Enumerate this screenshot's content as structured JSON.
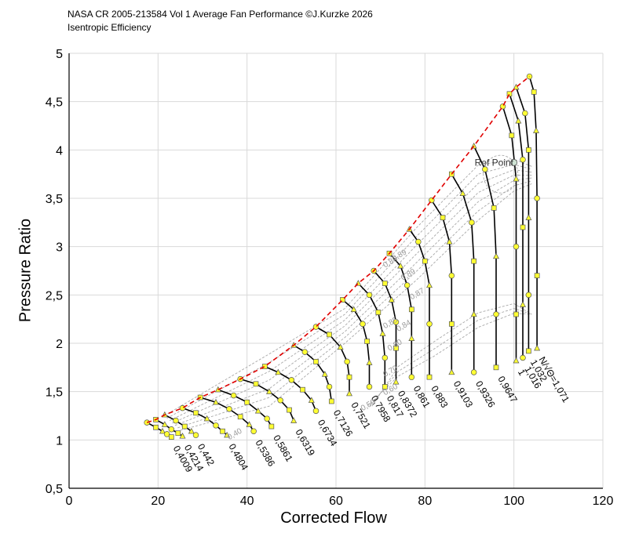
{
  "chart_data": {
    "type": "scatter",
    "title": "NASA CR 2005-213584 Vol 1 Average Fan Performance ©J.Kurzke 2026",
    "subtitle": "Isentropic Efficiency",
    "xlabel": "Corrected Flow",
    "ylabel": "Pressure Ratio",
    "xlim": [
      0,
      120
    ],
    "ylim": [
      0.5,
      5
    ],
    "x_ticks": [
      "0",
      "20",
      "40",
      "60",
      "80",
      "100",
      "120"
    ],
    "y_ticks": [
      "0,5",
      "1",
      "1,5",
      "2",
      "2,5",
      "3",
      "3,5",
      "4",
      "4,5",
      "5"
    ],
    "grid": true,
    "speed_lines": [
      {
        "label": "0,4009",
        "points": [
          [
            17.5,
            1.18
          ],
          [
            19.5,
            1.13
          ],
          [
            21,
            1.09
          ],
          [
            22,
            1.06
          ],
          [
            23,
            1.03
          ]
        ]
      },
      {
        "label": "0,4214",
        "points": [
          [
            19.5,
            1.21
          ],
          [
            21.5,
            1.16
          ],
          [
            23,
            1.11
          ],
          [
            24.5,
            1.07
          ],
          [
            25.5,
            1.04
          ]
        ]
      },
      {
        "label": "0,442",
        "points": [
          [
            21.5,
            1.26
          ],
          [
            24,
            1.2
          ],
          [
            26,
            1.14
          ],
          [
            27.5,
            1.09
          ],
          [
            28.5,
            1.05
          ]
        ]
      },
      {
        "label": "0,4804",
        "points": [
          [
            25.5,
            1.33
          ],
          [
            28.5,
            1.28
          ],
          [
            31,
            1.22
          ],
          [
            33,
            1.15
          ],
          [
            34.5,
            1.09
          ],
          [
            35.5,
            1.05
          ]
        ]
      },
      {
        "label": "0,5386",
        "points": [
          [
            29.5,
            1.44
          ],
          [
            33,
            1.39
          ],
          [
            36,
            1.32
          ],
          [
            38.5,
            1.24
          ],
          [
            40.5,
            1.16
          ],
          [
            41.5,
            1.09
          ]
        ]
      },
      {
        "label": "0,5861",
        "points": [
          [
            33.5,
            1.52
          ],
          [
            37,
            1.46
          ],
          [
            40,
            1.39
          ],
          [
            42.5,
            1.3
          ],
          [
            44.5,
            1.22
          ],
          [
            45.5,
            1.14
          ]
        ]
      },
      {
        "label": "0,6319",
        "points": [
          [
            38.5,
            1.63
          ],
          [
            42,
            1.58
          ],
          [
            45,
            1.5
          ],
          [
            47.5,
            1.41
          ],
          [
            49.5,
            1.31
          ],
          [
            50.5,
            1.2
          ]
        ]
      },
      {
        "label": "0,6734",
        "points": [
          [
            44,
            1.76
          ],
          [
            47,
            1.7
          ],
          [
            50,
            1.62
          ],
          [
            52.5,
            1.52
          ],
          [
            54.5,
            1.41
          ],
          [
            55.5,
            1.3
          ]
        ]
      },
      {
        "label": "0,7126",
        "points": [
          [
            50.5,
            1.98
          ],
          [
            53,
            1.91
          ],
          [
            55.5,
            1.81
          ],
          [
            57.5,
            1.68
          ],
          [
            58.5,
            1.55
          ],
          [
            59,
            1.4
          ]
        ]
      },
      {
        "label": "0,7521",
        "points": [
          [
            55.5,
            2.17
          ],
          [
            58.5,
            2.09
          ],
          [
            61,
            1.96
          ],
          [
            62.5,
            1.81
          ],
          [
            63,
            1.65
          ],
          [
            63,
            1.48
          ]
        ]
      },
      {
        "label": "0,7958",
        "points": [
          [
            61.5,
            2.45
          ],
          [
            64,
            2.35
          ],
          [
            66,
            2.2
          ],
          [
            67,
            2.02
          ],
          [
            67.5,
            1.8
          ],
          [
            67.5,
            1.55
          ]
        ]
      },
      {
        "label": "0,817",
        "points": [
          [
            65,
            2.62
          ],
          [
            67.5,
            2.5
          ],
          [
            69.5,
            2.32
          ],
          [
            70.5,
            2.1
          ],
          [
            71,
            1.85
          ],
          [
            71,
            1.55
          ]
        ]
      },
      {
        "label": "0,8372",
        "points": [
          [
            68.5,
            2.75
          ],
          [
            71,
            2.62
          ],
          [
            72.5,
            2.45
          ],
          [
            73.5,
            2.22
          ],
          [
            73.5,
            1.95
          ],
          [
            73.5,
            1.6
          ]
        ]
      },
      {
        "label": "0,861",
        "points": [
          [
            72,
            2.93
          ],
          [
            74.5,
            2.8
          ],
          [
            76,
            2.6
          ],
          [
            77,
            2.35
          ],
          [
            77,
            2.05
          ],
          [
            77,
            1.65
          ]
        ]
      },
      {
        "label": "0,883",
        "points": [
          [
            76.5,
            3.18
          ],
          [
            78.5,
            3.05
          ],
          [
            80,
            2.85
          ],
          [
            81,
            2.6
          ],
          [
            81,
            2.2
          ],
          [
            81,
            1.65
          ]
        ]
      },
      {
        "label": "0,9103",
        "points": [
          [
            81.5,
            3.48
          ],
          [
            84,
            3.3
          ],
          [
            85.5,
            3.05
          ],
          [
            86,
            2.7
          ],
          [
            86,
            2.2
          ],
          [
            86,
            1.7
          ]
        ]
      },
      {
        "label": "0,9326",
        "points": [
          [
            86,
            3.75
          ],
          [
            88.5,
            3.55
          ],
          [
            90.5,
            3.25
          ],
          [
            91,
            2.85
          ],
          [
            91,
            2.3
          ],
          [
            91,
            1.7
          ]
        ]
      },
      {
        "label": "0,9647",
        "points": [
          [
            91,
            4.04
          ],
          [
            93.5,
            3.8
          ],
          [
            95.5,
            3.4
          ],
          [
            96,
            2.9
          ],
          [
            96,
            2.3
          ],
          [
            96,
            1.75
          ]
        ]
      },
      {
        "label": "1",
        "points": [
          [
            97.5,
            4.45
          ],
          [
            99.5,
            4.15
          ],
          [
            100.5,
            3.7
          ],
          [
            100.5,
            3.0
          ],
          [
            100.5,
            2.3
          ],
          [
            100.5,
            1.82
          ]
        ]
      },
      {
        "label": "1,016",
        "points": [
          [
            99,
            4.58
          ],
          [
            101,
            4.3
          ],
          [
            102,
            3.9
          ],
          [
            102,
            3.2
          ],
          [
            102,
            2.4
          ],
          [
            102,
            1.85
          ]
        ]
      },
      {
        "label": "1,032",
        "points": [
          [
            100.5,
            4.65
          ],
          [
            102.5,
            4.38
          ],
          [
            103.3,
            4.0
          ],
          [
            103.3,
            3.3
          ],
          [
            103.3,
            2.5
          ],
          [
            103.3,
            1.92
          ]
        ]
      },
      {
        "label": "N/√Θ=1,071",
        "points": [
          [
            103.5,
            4.76
          ],
          [
            104.5,
            4.6
          ],
          [
            105,
            4.2
          ],
          [
            105.2,
            3.5
          ],
          [
            105.2,
            2.7
          ],
          [
            105.2,
            1.95
          ]
        ]
      }
    ],
    "surge_line": [
      [
        17.5,
        1.18
      ],
      [
        19.5,
        1.21
      ],
      [
        21.5,
        1.26
      ],
      [
        25.5,
        1.33
      ],
      [
        29.5,
        1.44
      ],
      [
        33.5,
        1.52
      ],
      [
        38.5,
        1.63
      ],
      [
        44,
        1.76
      ],
      [
        50.5,
        1.98
      ],
      [
        55.5,
        2.17
      ],
      [
        61.5,
        2.45
      ],
      [
        65,
        2.62
      ],
      [
        68.5,
        2.75
      ],
      [
        72,
        2.93
      ],
      [
        76.5,
        3.18
      ],
      [
        81.5,
        3.48
      ],
      [
        86,
        3.75
      ],
      [
        91,
        4.04
      ],
      [
        97.5,
        4.45
      ],
      [
        99,
        4.58
      ],
      [
        100.5,
        4.65
      ],
      [
        103.5,
        4.76
      ]
    ],
    "efficiency_labels": [
      {
        "label": "0,40",
        "x": 36,
        "y": 1.0
      },
      {
        "label": "0,50",
        "x": 66,
        "y": 1.3
      },
      {
        "label": "0,60",
        "x": 71,
        "y": 1.46
      },
      {
        "label": "0,70",
        "x": 71,
        "y": 1.65
      },
      {
        "label": "0,80",
        "x": 72,
        "y": 1.92
      },
      {
        "label": "0,84",
        "x": 74,
        "y": 2.12
      },
      {
        "label": "0,85",
        "x": 71,
        "y": 2.15
      },
      {
        "label": "0,87",
        "x": 77,
        "y": 2.45
      },
      {
        "label": "0,89",
        "x": 75,
        "y": 2.65
      },
      {
        "label": "0,86",
        "x": 71,
        "y": 2.78
      },
      {
        "label": "0,89",
        "x": 73,
        "y": 2.85
      }
    ],
    "ref_point": {
      "label": "Ref Point",
      "x": 100,
      "y": 3.87
    }
  }
}
